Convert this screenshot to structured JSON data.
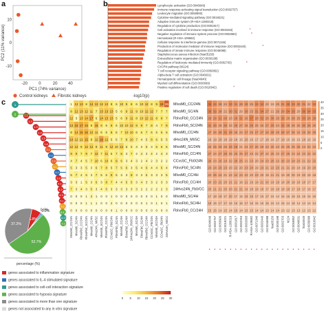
{
  "panels": {
    "a": "a",
    "b": "b",
    "c": "c"
  },
  "pca": {
    "xlabel": "PC1 (74% variance)",
    "ylabel": "PC2 (11% variance)",
    "xticks": [
      "-20",
      "0",
      "20",
      "40"
    ],
    "yticks": [
      "10",
      "0",
      "-10"
    ],
    "legend": [
      {
        "label": "Control kidneys",
        "shape": "circle",
        "color": "#e8592a"
      },
      {
        "label": "Fibrotic kidneys",
        "shape": "triangle",
        "color": "#e8592a"
      }
    ],
    "points": [
      {
        "x": -28,
        "y": 12,
        "shape": "circle"
      },
      {
        "x": -30,
        "y": 5,
        "shape": "circle"
      },
      {
        "x": -29,
        "y": -8,
        "shape": "circle"
      },
      {
        "x": -25,
        "y": -14,
        "shape": "circle"
      },
      {
        "x": 3,
        "y": 8,
        "shape": "triangle"
      },
      {
        "x": 27,
        "y": 3,
        "shape": "triangle"
      },
      {
        "x": 47,
        "y": 8,
        "shape": "triangle"
      }
    ]
  },
  "chart_data": [
    {
      "type": "bar",
      "orientation": "horizontal",
      "xlabel": "-log10(p)",
      "categories": [
        "Lymphocyte activation (GO:0046649)",
        "Immune response-activating signal transduction (GO:0002757)",
        "Leukocyte migration (GO:0050900)",
        "Cytokine-mediated signaling pathway (GO:0019221)",
        "Adaptive immune system (R-HSA-1280218)",
        "Regulation of cytokine production (GO:0001817)",
        "Cell activation involved in immune response (GO:0002263)",
        "Negative regulation of immune system process (GO:0002683)",
        "Hemostasis (R-HSA-109582)",
        "Cellular response to interferon-gamma (GO:0071346)",
        "Production of molecular mediator of immune response (GO:0002440)",
        "Regulation of innate immune response (GO:0045088)",
        "Staphylococcus aureus infection (hsa05150)",
        "Extracellular matrix organization (GO:0030198)",
        "Regulation of leukocyte mediated immunity (GO:0002703)",
        "CXCR4 pathway (M124)",
        "T cell receptor signaling pathway (GO:0050852)",
        "Alpha-beta T cell activation (GO:0046631)",
        "Hematopoietic cell lineage (hsa04640)",
        "Myeloid cell differentiation (GO:0030099)",
        "Positive regulation of cell death (GO:0010942)"
      ],
      "values": [
        48,
        46,
        44,
        43,
        41,
        41,
        40,
        39,
        39,
        38,
        37,
        37,
        36,
        35,
        34,
        34,
        33,
        33,
        32,
        32,
        31
      ],
      "marked": [
        false,
        false,
        false,
        false,
        false,
        false,
        true,
        true,
        false,
        false,
        true,
        true,
        false,
        false,
        true,
        false,
        false,
        false,
        false,
        false,
        true
      ],
      "bar_color": "#e8592a"
    },
    {
      "type": "heatmap",
      "rows": [
        "MIvsM0_CC/24N",
        "MIvsM0_SC/4N",
        "FbIvsFb0_CC/24N",
        "FbIvsFb0_SC/24N",
        "MIvsM0_CC/4N",
        "4Hvs24N_MI/SC",
        "MIvsM0_SC/24N",
        "FbIvsFb0_CC/4N",
        "CCvsSC_Fb0/24N",
        "FbIvsFb0_SC/4N",
        "MIvsM0_CC/4H",
        "FbIvsFb0_CC/4H",
        "24Hvs24N_Fb0/CC",
        "MIvsM0_SC/4H",
        "FbIvsFb0_SC/4H",
        "FbIvsFb0_CC/24H"
      ],
      "row_label_color": "#222",
      "left_values": [
        [
          1,
          12,
          13,
          8,
          14,
          13,
          12,
          12,
          8,
          6,
          10,
          9,
          8,
          6,
          10,
          12,
          8,
          9,
          19,
          25
        ],
        [
          8,
          12,
          13,
          12,
          11,
          7,
          13,
          13,
          13,
          5,
          6,
          9,
          11,
          9,
          10,
          12,
          12,
          7,
          7,
          7
        ],
        [
          12,
          3,
          13,
          14,
          17,
          6,
          14,
          13,
          13,
          5,
          6,
          9,
          11,
          8,
          10,
          12,
          11,
          8,
          8,
          7
        ],
        [
          13,
          16,
          17,
          15,
          8,
          15,
          8,
          6,
          9,
          6,
          10,
          10,
          12,
          9,
          9,
          7,
          8,
          4,
          7,
          9
        ],
        [
          8,
          14,
          16,
          16,
          12,
          11,
          6,
          6,
          8,
          6,
          7,
          10,
          10,
          6,
          6,
          7,
          6,
          5,
          6,
          6
        ],
        [
          14,
          12,
          12,
          15,
          8,
          12,
          18,
          12,
          5,
          5,
          7,
          8,
          10,
          7,
          4,
          5,
          8,
          6,
          5,
          5
        ],
        [
          12,
          12,
          9,
          12,
          12,
          9,
          11,
          9,
          12,
          10,
          12,
          6,
          5,
          4,
          3,
          5,
          3,
          6,
          6,
          6
        ],
        [
          9,
          9,
          7,
          9,
          7,
          12,
          7,
          11,
          6,
          7,
          8,
          3,
          7,
          2,
          4,
          3,
          4,
          2,
          4,
          3
        ],
        [
          4,
          7,
          4,
          5,
          7,
          10,
          6,
          10,
          6,
          9,
          6,
          3,
          4,
          3,
          2,
          4,
          2,
          3,
          2,
          2
        ],
        [
          5,
          3,
          3,
          5,
          3,
          6,
          7,
          8,
          5,
          7,
          5,
          6,
          3,
          5,
          4,
          6,
          4,
          4,
          5,
          4
        ],
        [
          5,
          7,
          4,
          5,
          3,
          7,
          5,
          5,
          9,
          5,
          3,
          3,
          8,
          3,
          3,
          5,
          3,
          3,
          3,
          5
        ],
        [
          3,
          3,
          1,
          5,
          3,
          6,
          3,
          8,
          7,
          4,
          4,
          5,
          5,
          3,
          4,
          3,
          3,
          2,
          3,
          3
        ],
        [
          7,
          3,
          4,
          3,
          5,
          3,
          4,
          5,
          3,
          3,
          3,
          3,
          3,
          3,
          2,
          2,
          2,
          2,
          2,
          3
        ],
        [
          0,
          0,
          0,
          1,
          3,
          1,
          0,
          0,
          1,
          0,
          0,
          0,
          0,
          0,
          0,
          0,
          0,
          1,
          0,
          0
        ],
        [
          0,
          0,
          0,
          1,
          1,
          1,
          0,
          0,
          2,
          0,
          0,
          0,
          0,
          0,
          0,
          1,
          0,
          1,
          0,
          1
        ],
        [
          0,
          0,
          0,
          0,
          0,
          0,
          0,
          0,
          0,
          1,
          0,
          0,
          0,
          0,
          0,
          0,
          0,
          0,
          0,
          0
        ]
      ],
      "right_values": [
        [
          39,
          33,
          28,
          24,
          33,
          31,
          28,
          30,
          25,
          33,
          34,
          22,
          19,
          25,
          31,
          35,
          33,
          30,
          31,
          22,
          32
        ],
        [
          35,
          32,
          28,
          22,
          30,
          31,
          20,
          30,
          25,
          31,
          34,
          27,
          21,
          26,
          29,
          34,
          33,
          20,
          36,
          34,
          33
        ],
        [
          29,
          29,
          31,
          28,
          23,
          29,
          31,
          26,
          37,
          28,
          32,
          26,
          30,
          25,
          32,
          26,
          28,
          25,
          33,
          28,
          29
        ],
        [
          31,
          29,
          25,
          30,
          23,
          29,
          27,
          26,
          30,
          25,
          25,
          27,
          29,
          24,
          32,
          28,
          26,
          25,
          30,
          28,
          25
        ],
        [
          27,
          26,
          28,
          31,
          29,
          26,
          24,
          27,
          25,
          27,
          27,
          26,
          28,
          25,
          29,
          27,
          26,
          24,
          26,
          25,
          25
        ],
        [
          18,
          19,
          20,
          18,
          19,
          18,
          15,
          20,
          16,
          17,
          17,
          18,
          16,
          17,
          19,
          16,
          16,
          15,
          18,
          16,
          16
        ],
        [
          25,
          26,
          26,
          25,
          28,
          29,
          21,
          24,
          27,
          26,
          25,
          24,
          25,
          23,
          25,
          25,
          25,
          26,
          23,
          24,
          23
        ],
        [
          27,
          24,
          27,
          28,
          25,
          26,
          25,
          27,
          23,
          22,
          27,
          22,
          25,
          22,
          27,
          26,
          23,
          24,
          23,
          24,
          22
        ],
        [
          26,
          23,
          25,
          24,
          22,
          26,
          25,
          21,
          23,
          20,
          24,
          23,
          25,
          22,
          25,
          23,
          24,
          23,
          21,
          22,
          22
        ],
        [
          24,
          24,
          25,
          23,
          20,
          22,
          20,
          23,
          24,
          19,
          23,
          21,
          22,
          23,
          21,
          21,
          20,
          18,
          19,
          20,
          20
        ],
        [
          23,
          26,
          24,
          21,
          22,
          24,
          23,
          22,
          20,
          23,
          20,
          19,
          21,
          21,
          19,
          20,
          20,
          19,
          20,
          18,
          18
        ],
        [
          20,
          23,
          22,
          20,
          21,
          21,
          18,
          21,
          19,
          19,
          21,
          20,
          19,
          19,
          18,
          20,
          18,
          18,
          18,
          17,
          17
        ],
        [
          20,
          21,
          21,
          20,
          20,
          21,
          21,
          19,
          18,
          19,
          18,
          17,
          18,
          18,
          18,
          19,
          17,
          18,
          17,
          16,
          17
        ],
        [
          17,
          18,
          19,
          17,
          20,
          17,
          15,
          19,
          18,
          17,
          16,
          17,
          15,
          14,
          16,
          16,
          16,
          16,
          15,
          15,
          15
        ],
        [
          19,
          16,
          17,
          17,
          16,
          16,
          16,
          17,
          16,
          15,
          15,
          16,
          15,
          14,
          15,
          14,
          15,
          14,
          14,
          14,
          14
        ],
        [
          15,
          15,
          14,
          15,
          14,
          16,
          14,
          15,
          15,
          14,
          14,
          13,
          14,
          14,
          13,
          12,
          13,
          13,
          12,
          13,
          12
        ]
      ],
      "col_labels_left": [
        "MIvsM0_CC/24N",
        "MIvsM0_SC/4N",
        "FbIvsFb0_CC/24N",
        "FbIvsFb0_SC/24N",
        "MIvsM0_CC/4N",
        "4Hvs24N_MI/SC",
        "MIvsM0_SC/24N",
        "FbIvsFb0_CC/4N",
        "CCvsSC_Fb0/24N",
        "FbIvsFb0_SC/4N",
        "MIvsM0_CC/4H",
        "FbIvsFb0_CC/4H",
        "24Hvs24N_Fb0/CC",
        "MIvsM0_SC/4H",
        "FbIvsFb0_SC/4H",
        "FbIvsFb0_CC/24H",
        "CCvsSC_FbI/24N",
        "MIvsM0_SC/24H",
        "CCvsSC_Fb0/4N",
        "24Hvs4H_MI/CC"
      ],
      "col_labels_right": [
        "GO:0046649",
        "GO:0002757",
        "GO:0050900",
        "GO:0019221",
        "R-HSA-1280218",
        "GO:0001817",
        "GO:0002263",
        "GO:0002683",
        "R-HSA-109582",
        "GO:0071346",
        "GO:0002440",
        "GO:0045088",
        "hsa05150",
        "GO:0030198",
        "GO:0002703",
        "M124",
        "GO:0050852",
        "GO:0046631",
        "hsa04640",
        "GO:0030099",
        "GO:0010942"
      ],
      "colorbar_ticks": [
        "0",
        "5",
        "10",
        "15",
        "20",
        "25",
        "30"
      ],
      "right_scale_ticks": [
        "40",
        "35",
        "30",
        "25",
        "20",
        "15",
        "10",
        "5",
        "0"
      ]
    },
    {
      "type": "pie",
      "xlabel": "percentage (%)",
      "slices": [
        {
          "label": "genes associated to inflammation signature",
          "value": 6.8,
          "color": "#d72826"
        },
        {
          "label": "genes associated to IL-4 stimulated signature",
          "value": 0.9,
          "color": "#2e6fb5"
        },
        {
          "label": "genes associated to cell-cell interaction signature",
          "value": 0.9,
          "color": "#2e9b8f"
        },
        {
          "label": "genes associated to hypoxia signature",
          "value": 52.7,
          "color": "#5eb14a"
        },
        {
          "label": "genes associated to more than one signature",
          "value": 37.2,
          "color": "#8c8c8c"
        }
      ],
      "slice_labels": [
        "6.8%",
        "0.9%",
        "0.9%",
        "52.7%",
        "37.2%"
      ],
      "extra_legend": "genes not associated to any in vitro signature"
    }
  ],
  "lollipops": [
    {
      "label": "1.1",
      "color": "#d72826",
      "len": 58
    },
    {
      "label": "1.2",
      "color": "#d72826",
      "len": 52
    },
    {
      "label": "1.3",
      "color": "#d72826",
      "len": 44
    },
    {
      "label": "1.4",
      "color": "#d72826",
      "len": 38
    },
    {
      "label": "1.5",
      "color": "#d72826",
      "len": 33
    },
    {
      "label": "1.6",
      "color": "#d72826",
      "len": 29
    },
    {
      "label": "2.1",
      "color": "#e8592a",
      "len": 26
    },
    {
      "label": "2.2",
      "color": "#2e6fb5",
      "len": 22
    },
    {
      "label": "2.3",
      "color": "#e8592a",
      "len": 18
    },
    {
      "label": "3.1",
      "color": "#f0a020",
      "len": 16
    },
    {
      "label": "3.2",
      "color": "#2e6fb5",
      "len": 13
    },
    {
      "label": "3.3",
      "color": "#d72826",
      "len": 11
    },
    {
      "label": "4.1",
      "color": "#d72826",
      "len": 9
    },
    {
      "label": "4.2",
      "color": "#d72826",
      "len": 8
    },
    {
      "label": "4.3",
      "color": "#d72826",
      "len": 7
    },
    {
      "label": "5.1",
      "color": "#d72826",
      "len": 6
    },
    {
      "label": "5.2",
      "color": "#f0a020",
      "len": 5
    },
    {
      "label": "6.1",
      "color": "#5eb14a",
      "len": 5
    },
    {
      "label": "6.2",
      "color": "#2e9b8f",
      "len": 4
    },
    {
      "label": "7.1",
      "color": "#5eb14a",
      "len": 4
    }
  ],
  "top_lollipops": [
    {
      "label": "1",
      "color": "#2e9b8f",
      "len": 0
    },
    {
      "label": "2",
      "color": "#5eb14a",
      "len": 0
    }
  ]
}
